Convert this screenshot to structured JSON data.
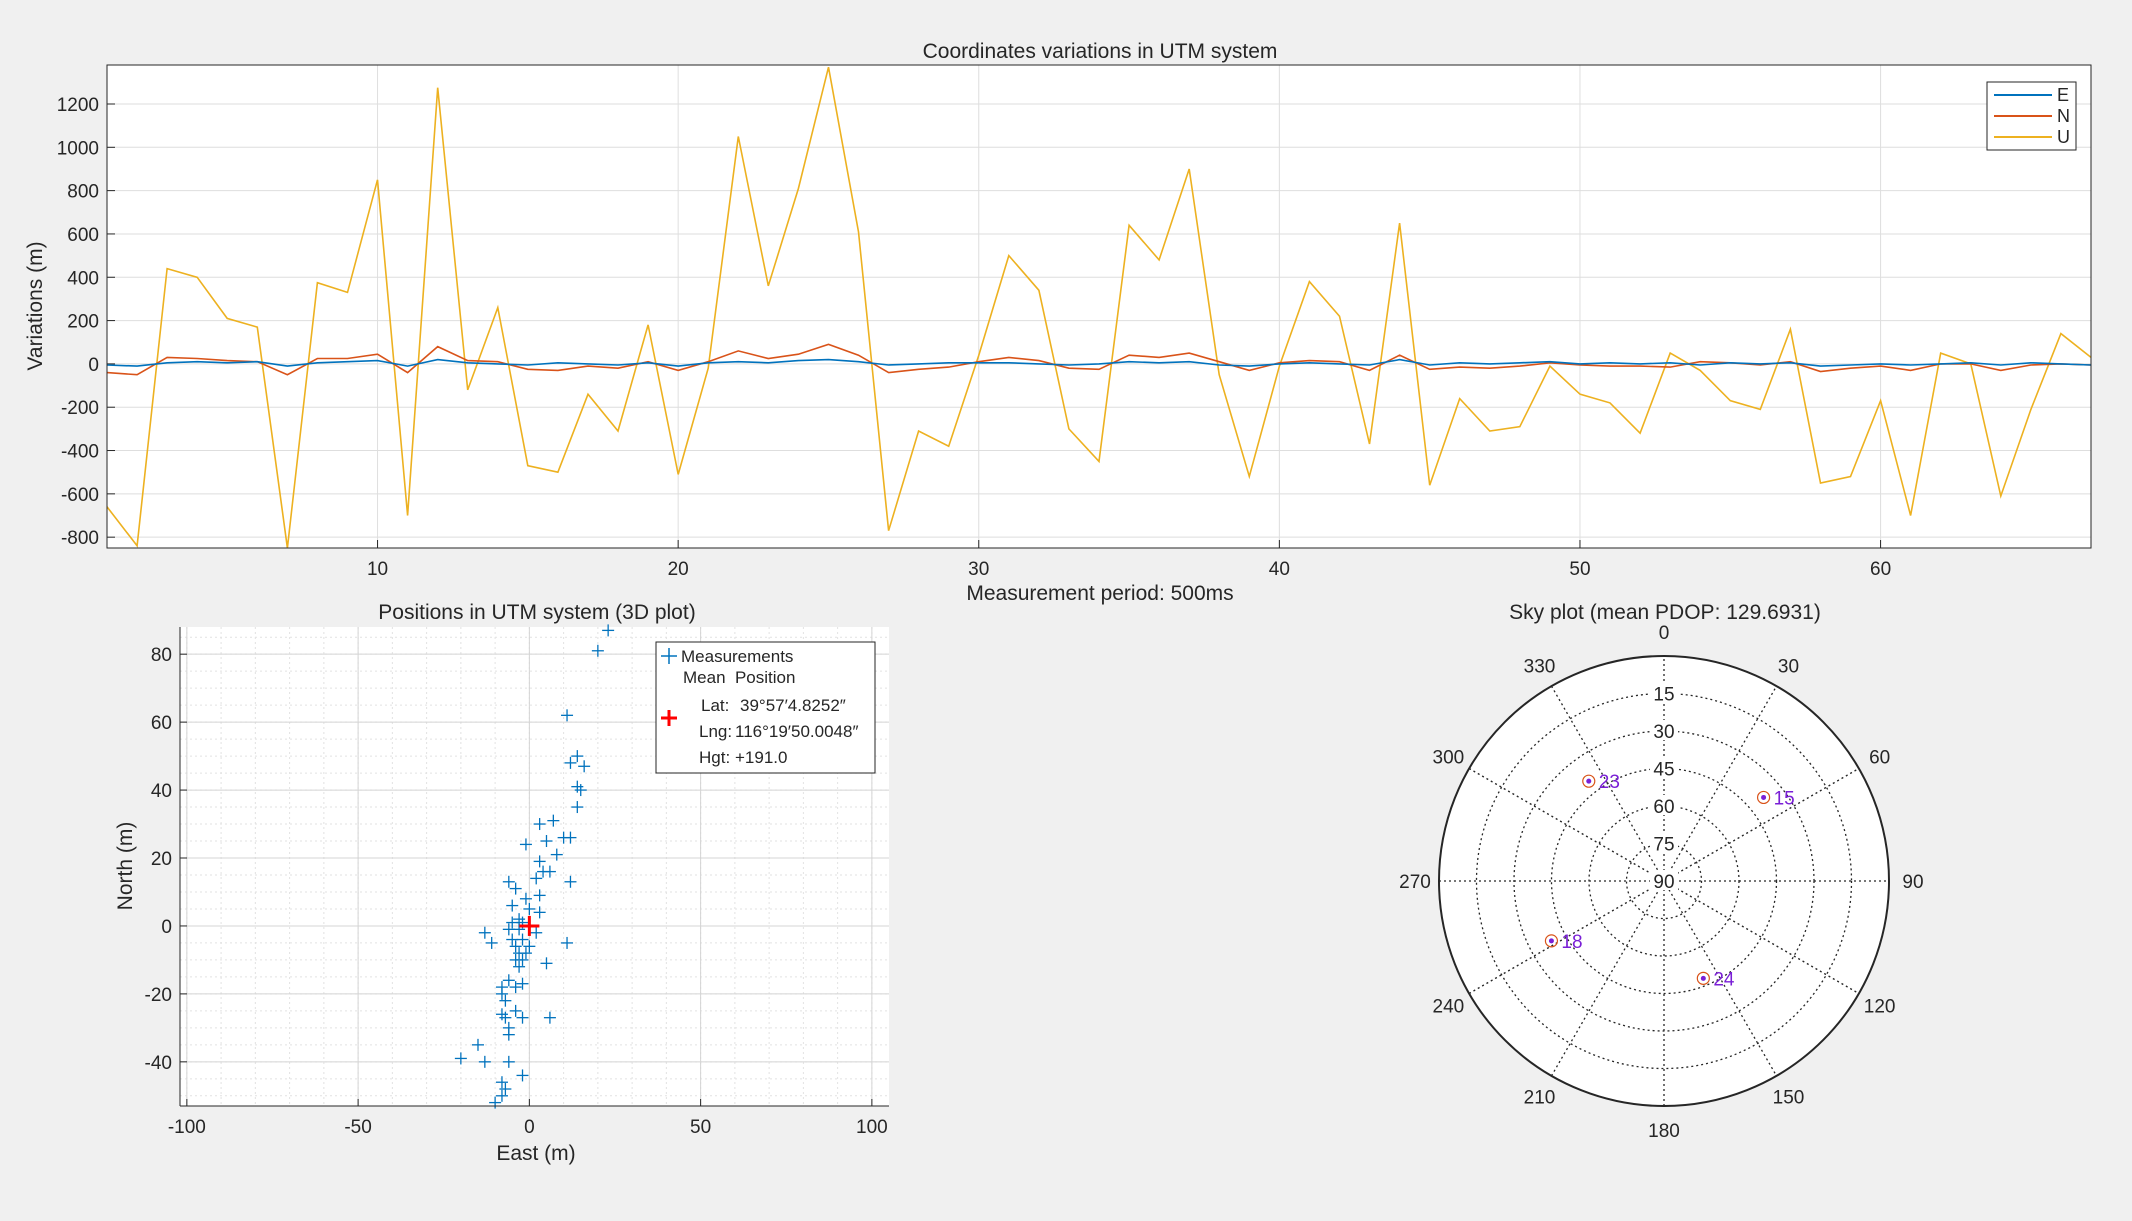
{
  "colors": {
    "E": "#0072bd",
    "N": "#d95319",
    "U": "#edb120",
    "sat": "#7a1fd6",
    "mean": "#ff0000",
    "figure_bg": "#f0f0f0"
  },
  "chart_data": [
    {
      "type": "line",
      "title": "Coordinates variations in UTM system",
      "xlabel": "Measurement period: 500ms",
      "ylabel": "Variations (m)",
      "xlim": [
        1,
        67
      ],
      "ylim": [
        -850,
        1380
      ],
      "xticks": [
        10,
        20,
        30,
        40,
        50,
        60
      ],
      "yticks": [
        -800,
        -600,
        -400,
        -200,
        0,
        200,
        400,
        600,
        800,
        1000,
        1200
      ],
      "grid": true,
      "legend": "top-right",
      "x": [
        1,
        2,
        3,
        4,
        5,
        6,
        7,
        8,
        9,
        10,
        11,
        12,
        13,
        14,
        15,
        16,
        17,
        18,
        19,
        20,
        21,
        22,
        23,
        24,
        25,
        26,
        27,
        28,
        29,
        30,
        31,
        32,
        33,
        34,
        35,
        36,
        37,
        38,
        39,
        40,
        41,
        42,
        43,
        44,
        45,
        46,
        47,
        48,
        49,
        50,
        51,
        52,
        53,
        54,
        55,
        56,
        57,
        58,
        59,
        60,
        61,
        62,
        63,
        64,
        65,
        66,
        67
      ],
      "series": [
        {
          "name": "E",
          "values": [
            -5,
            -10,
            5,
            10,
            5,
            10,
            -10,
            5,
            10,
            15,
            -10,
            20,
            5,
            0,
            -5,
            5,
            0,
            -5,
            5,
            -10,
            5,
            10,
            5,
            15,
            20,
            10,
            -5,
            0,
            5,
            5,
            5,
            0,
            -5,
            0,
            10,
            5,
            10,
            -5,
            -10,
            0,
            5,
            0,
            -5,
            20,
            -5,
            5,
            0,
            5,
            10,
            0,
            5,
            0,
            5,
            -5,
            5,
            0,
            5,
            -10,
            -5,
            0,
            -5,
            0,
            5,
            -5,
            5,
            0,
            -5
          ]
        },
        {
          "name": "N",
          "values": [
            -40,
            -50,
            30,
            25,
            15,
            10,
            -50,
            25,
            25,
            45,
            -40,
            80,
            15,
            10,
            -25,
            -30,
            -10,
            -20,
            10,
            -30,
            10,
            60,
            25,
            45,
            90,
            40,
            -40,
            -25,
            -15,
            10,
            30,
            15,
            -20,
            -25,
            40,
            30,
            50,
            10,
            -30,
            5,
            15,
            10,
            -30,
            40,
            -25,
            -15,
            -20,
            -10,
            5,
            -5,
            -10,
            -10,
            -15,
            10,
            5,
            -5,
            10,
            -35,
            -20,
            -10,
            -30,
            0,
            0,
            -30,
            -5,
            0,
            -5
          ]
        },
        {
          "name": "U",
          "values": [
            -660,
            -840,
            440,
            400,
            210,
            170,
            -850,
            375,
            330,
            850,
            -700,
            1275,
            -120,
            260,
            -470,
            -500,
            -140,
            -310,
            180,
            -510,
            -20,
            1050,
            360,
            810,
            1370,
            610,
            -770,
            -310,
            -380,
            40,
            500,
            340,
            -300,
            -450,
            640,
            480,
            900,
            -50,
            -520,
            -10,
            380,
            220,
            -370,
            650,
            -560,
            -160,
            -310,
            -290,
            -10,
            -140,
            -180,
            -320,
            50,
            -30,
            -170,
            -210,
            160,
            -550,
            -520,
            -170,
            -700,
            50,
            0,
            -610,
            -210,
            140,
            30
          ]
        }
      ]
    },
    {
      "type": "scatter",
      "title": "Positions in UTM system (3D plot)",
      "xlabel": "East (m)",
      "ylabel": "North (m)",
      "xlim": [
        -102,
        105
      ],
      "ylim": [
        -53,
        88
      ],
      "xticks": [
        -100,
        -50,
        0,
        50,
        100
      ],
      "yticks": [
        -40,
        -20,
        0,
        20,
        40,
        60,
        80
      ],
      "grid": true,
      "legend": "top-right",
      "measurements_label": "Measurements",
      "points": [
        [
          23,
          87
        ],
        [
          20,
          81
        ],
        [
          11,
          62
        ],
        [
          14,
          50
        ],
        [
          16,
          47
        ],
        [
          12,
          48
        ],
        [
          14,
          41
        ],
        [
          15,
          40
        ],
        [
          14,
          35
        ],
        [
          7,
          31
        ],
        [
          3,
          30
        ],
        [
          10,
          26
        ],
        [
          12,
          26
        ],
        [
          -1,
          24
        ],
        [
          5,
          25
        ],
        [
          8,
          21
        ],
        [
          3,
          19
        ],
        [
          4,
          16
        ],
        [
          6,
          16
        ],
        [
          2,
          14
        ],
        [
          12,
          13
        ],
        [
          -6,
          13
        ],
        [
          -4,
          11
        ],
        [
          -1,
          8
        ],
        [
          3,
          9
        ],
        [
          -5,
          6
        ],
        [
          0,
          5
        ],
        [
          3,
          4
        ],
        [
          -3,
          2
        ],
        [
          -2,
          1
        ],
        [
          -5,
          1
        ],
        [
          -6,
          -1
        ],
        [
          -3,
          -1
        ],
        [
          2,
          -2
        ],
        [
          -13,
          -2
        ],
        [
          -2,
          -4
        ],
        [
          -5,
          -4
        ],
        [
          -4,
          -6
        ],
        [
          0,
          -6
        ],
        [
          -11,
          -5
        ],
        [
          11,
          -5
        ],
        [
          -3,
          -8
        ],
        [
          -1,
          -8
        ],
        [
          -4,
          -10
        ],
        [
          -2,
          -10
        ],
        [
          5,
          -11
        ],
        [
          -3,
          -12
        ],
        [
          -6,
          -16
        ],
        [
          -2,
          -17
        ],
        [
          -8,
          -18
        ],
        [
          -4,
          -18
        ],
        [
          -8,
          -20
        ],
        [
          -7,
          -22
        ],
        [
          -8,
          -26
        ],
        [
          -4,
          -25
        ],
        [
          -2,
          -27
        ],
        [
          6,
          -27
        ],
        [
          -7,
          -27
        ],
        [
          -6,
          -30
        ],
        [
          -6,
          -32
        ],
        [
          -15,
          -35
        ],
        [
          -20,
          -39
        ],
        [
          -6,
          -40
        ],
        [
          -13,
          -40
        ],
        [
          -2,
          -44
        ],
        [
          -8,
          -46
        ],
        [
          -7,
          -48
        ],
        [
          -8,
          -50
        ],
        [
          -10,
          -52
        ]
      ],
      "mean_position": {
        "x": 0,
        "y": 0
      },
      "info": {
        "header": "Mean  Position",
        "lat_label": "Lat:",
        "lat": "39°57′4.8252″",
        "lng_label": "Lng:",
        "lng": "116°19′50.0048″",
        "hgt_label": "Hgt:",
        "hgt": "+191.0"
      }
    },
    {
      "type": "polar",
      "title": "Sky plot (mean PDOP: 129.6931)",
      "azimuth_labels": [
        "0",
        "30",
        "60",
        "90",
        "120",
        "150",
        "180",
        "210",
        "240",
        "270",
        "300",
        "330"
      ],
      "elevation_labels": [
        "15",
        "30",
        "45",
        "60",
        "75",
        "90"
      ],
      "satellites": [
        {
          "prn": "23",
          "azimuth": 323,
          "elevation": 40
        },
        {
          "prn": "15",
          "azimuth": 50,
          "elevation": 38
        },
        {
          "prn": "18",
          "azimuth": 242,
          "elevation": 39
        },
        {
          "prn": "24",
          "azimuth": 158,
          "elevation": 48
        }
      ]
    }
  ]
}
